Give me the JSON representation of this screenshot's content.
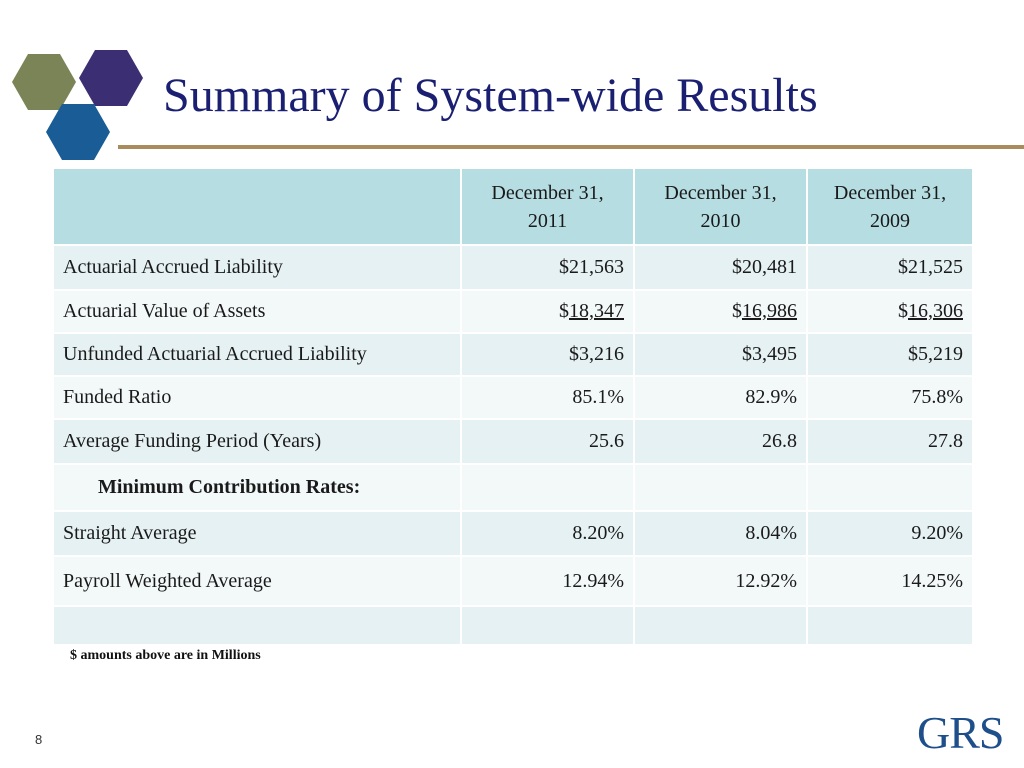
{
  "slide": {
    "title": "Summary of System-wide Results",
    "page_number": "8",
    "footnote": "$ amounts above are in Millions",
    "logo_text": "GRS"
  },
  "colors": {
    "title": "#1a1f71",
    "rule": "#a88c5c",
    "header_bg": "#b6dde2",
    "row_bg_a": "#e6f1f3",
    "row_bg_b": "#f3f8f9",
    "hex_olive": "#7a8456",
    "hex_purple": "#3b2e72",
    "hex_blue": "#1a5c96",
    "grs_logo": "#1e4f8a"
  },
  "table": {
    "headers": [
      "",
      "December 31, 2011",
      "December 31, 2010",
      "December 31, 2009"
    ],
    "rows": [
      {
        "label": "Actuarial Accrued Liability",
        "v2011": "$21,563",
        "v2010": "$20,481",
        "v2009": "$21,525"
      },
      {
        "label": "Actuarial Value of Assets",
        "prefix": "$",
        "v2011": "18,347",
        "v2010": "16,986",
        "v2009": "16,306"
      },
      {
        "label": "Unfunded Actuarial Accrued Liability",
        "v2011": "$3,216",
        "v2010": "$3,495",
        "v2009": "$5,219"
      },
      {
        "label": "Funded Ratio",
        "v2011": "85.1%",
        "v2010": "82.9%",
        "v2009": "75.8%"
      },
      {
        "label": "Average Funding Period (Years)",
        "v2011": "25.6",
        "v2010": "26.8",
        "v2009": "27.8"
      },
      {
        "label": "Minimum Contribution Rates:",
        "v2011": "",
        "v2010": "",
        "v2009": ""
      },
      {
        "label": "Straight Average",
        "v2011": "8.20%",
        "v2010": "8.04%",
        "v2009": "9.20%"
      },
      {
        "label": "Payroll Weighted Average",
        "v2011": "12.94%",
        "v2010": "12.92%",
        "v2009": "14.25%"
      },
      {
        "label": "",
        "v2011": "",
        "v2010": "",
        "v2009": ""
      }
    ]
  }
}
